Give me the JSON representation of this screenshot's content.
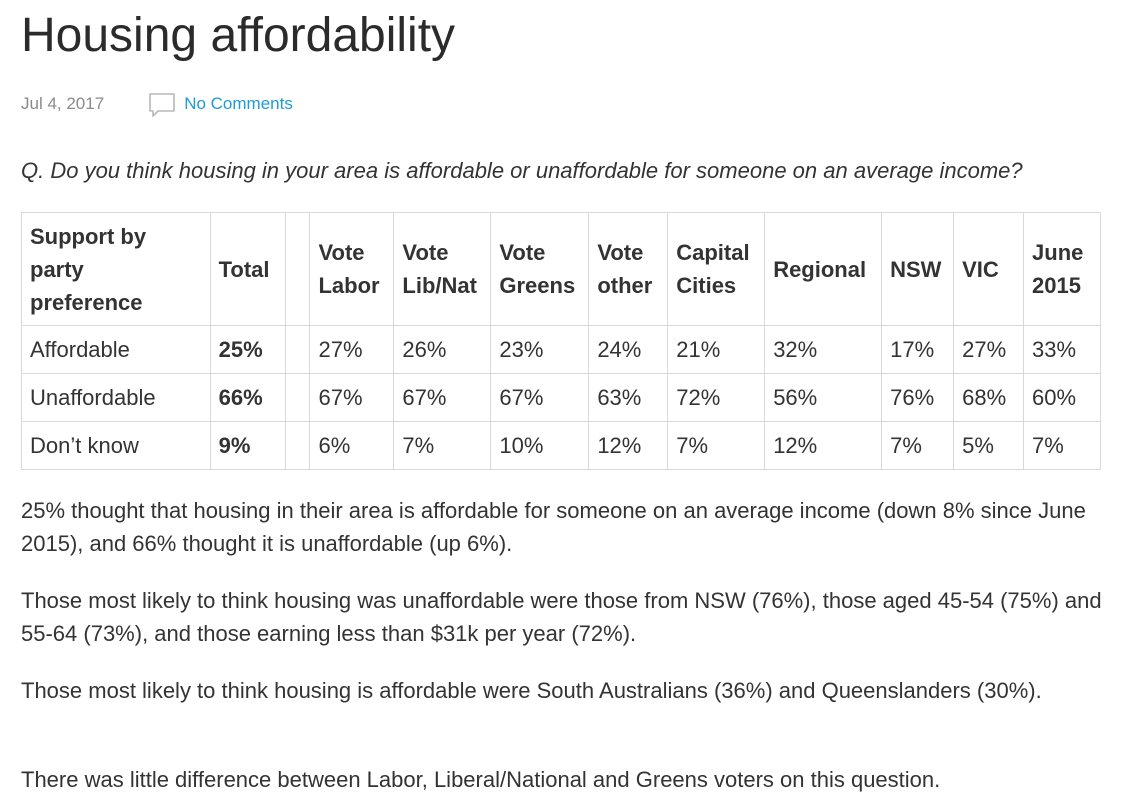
{
  "article": {
    "title": "Housing affordability",
    "date": "Jul 4, 2017",
    "comments_label": "No Comments",
    "question": "Q. Do you think housing in your area is affordable or unaffordable for someone on an average income?"
  },
  "table": {
    "headers": [
      "Support by party preference",
      "Total",
      "",
      "Vote Labor",
      "Vote Lib/Nat",
      "Vote Greens",
      "Vote other",
      "Capital Cities",
      "Regional",
      "NSW",
      "VIC",
      "June 2015"
    ],
    "rows": [
      {
        "label": "Affordable",
        "cells": [
          "25%",
          "",
          "27%",
          "26%",
          "23%",
          "24%",
          "21%",
          "32%",
          "17%",
          "27%",
          "33%"
        ]
      },
      {
        "label": "Unaffordable",
        "cells": [
          "66%",
          "",
          "67%",
          "67%",
          "67%",
          "63%",
          "72%",
          "56%",
          "76%",
          "68%",
          "60%"
        ]
      },
      {
        "label": "Don’t know",
        "cells": [
          "9%",
          "",
          "6%",
          "7%",
          "10%",
          "12%",
          "7%",
          "12%",
          "7%",
          "5%",
          "7%"
        ]
      }
    ]
  },
  "paragraphs": [
    "25% thought that housing in their area is affordable for someone on an average income (down 8% since June 2015), and 66% thought it is unaffordable (up 6%).",
    "Those most likely to think housing was unaffordable were those from NSW (76%), those aged 45-54 (75%) and 55-64 (73%), and those earning less than $31k per year (72%).",
    "Those most likely to think housing is affordable were South Australians (36%) and Queenslanders (30%).",
    "There was little difference between Labor, Liberal/National and Greens voters on this question."
  ],
  "icons": {
    "comment": "comment-bubble-icon"
  },
  "colors": {
    "link": "#1e9bd6",
    "meta": "#8a8a8a",
    "border": "#d9d9d9"
  }
}
